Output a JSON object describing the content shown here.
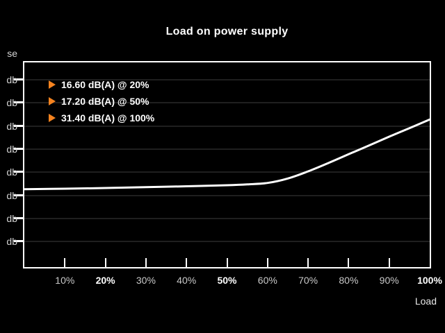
{
  "ui": {
    "title": "Load on power supply",
    "x_axis_title": "Load",
    "y_axis_title_clipped": "se"
  },
  "annotations": [
    {
      "text": "16.60 dB(A) @ 20%",
      "load_pct": 20,
      "noise_db": 16.6
    },
    {
      "text": "17.20 dB(A) @ 50%",
      "load_pct": 50,
      "noise_db": 17.2
    },
    {
      "text": "31.40 dB(A) @ 100%",
      "load_pct": 100,
      "noise_db": 31.4
    }
  ],
  "colors": {
    "background": "#000000",
    "accent_orange": "#f5831f",
    "curve": "#ffffff",
    "grid": "#1f1f1f",
    "axis": "#ffffff",
    "label_dim": "#c9c9c9",
    "label_bright": "#ffffff"
  },
  "chart_data": {
    "type": "line",
    "title": "Load on power supply",
    "xlabel": "Load",
    "ylabel_visible_clipped": "se",
    "x_unit": "%",
    "y_unit_label": "db",
    "x_range": [
      0,
      100
    ],
    "grid": "horizontal",
    "legend_position": "top-left",
    "x_tick_labels": [
      {
        "text": "10%",
        "pct": 10,
        "bold": false
      },
      {
        "text": "20%",
        "pct": 20,
        "bold": true
      },
      {
        "text": "30%",
        "pct": 30,
        "bold": false
      },
      {
        "text": "40%",
        "pct": 40,
        "bold": false
      },
      {
        "text": "50%",
        "pct": 50,
        "bold": true
      },
      {
        "text": "60%",
        "pct": 60,
        "bold": false
      },
      {
        "text": "70%",
        "pct": 70,
        "bold": false
      },
      {
        "text": "80%",
        "pct": 80,
        "bold": false
      },
      {
        "text": "90%",
        "pct": 90,
        "bold": false
      },
      {
        "text": "100%",
        "pct": 100,
        "bold": true
      }
    ],
    "y_tick_labels": [
      "db",
      "db",
      "db",
      "db",
      "db",
      "db",
      "db",
      "db"
    ],
    "key_points": [
      {
        "x": 20,
        "y": 16.6
      },
      {
        "x": 50,
        "y": 17.2
      },
      {
        "x": 100,
        "y": 31.4
      }
    ],
    "series": [
      {
        "name": "noise-db-vs-load",
        "points": [
          [
            0,
            16.35
          ],
          [
            10,
            16.45
          ],
          [
            20,
            16.6
          ],
          [
            30,
            16.78
          ],
          [
            40,
            16.98
          ],
          [
            50,
            17.2
          ],
          [
            55,
            17.38
          ],
          [
            60,
            17.7
          ],
          [
            65,
            18.65
          ],
          [
            70,
            20.2
          ],
          [
            75,
            22.0
          ],
          [
            80,
            23.9
          ],
          [
            85,
            25.8
          ],
          [
            90,
            27.7
          ],
          [
            95,
            29.55
          ],
          [
            100,
            31.4
          ]
        ]
      }
    ]
  }
}
